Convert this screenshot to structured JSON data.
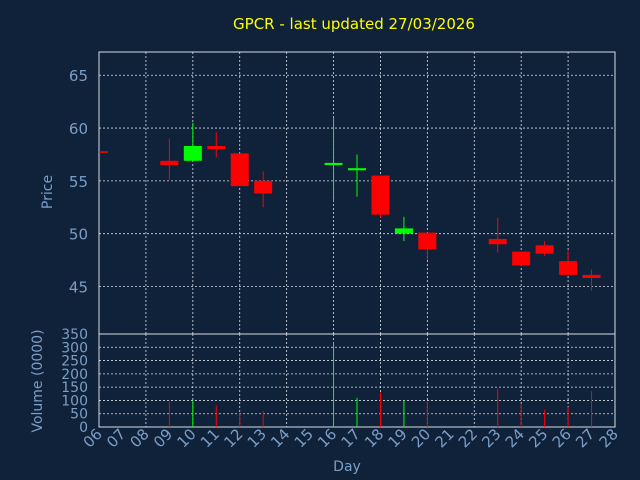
{
  "title": "GPCR - last updated 27/03/2026",
  "colors": {
    "background": "#10213a",
    "title": "#ffff00",
    "axis_text": "#7b9fc6",
    "grid": "#d8dde6",
    "up": "#00ff00",
    "down": "#ff0000"
  },
  "chart_data": [
    {
      "type": "candlestick",
      "ylabel": "Price",
      "ylim": [
        40.5,
        67.2
      ],
      "yticks": [
        45,
        50,
        55,
        60,
        65
      ],
      "grid": true,
      "days": [
        "06",
        "07",
        "08",
        "09",
        "10",
        "11",
        "12",
        "13",
        "14",
        "15",
        "16",
        "17",
        "18",
        "19",
        "20",
        "21",
        "22",
        "23",
        "24",
        "25",
        "26",
        "27",
        "28"
      ],
      "candles": [
        {
          "day": "06",
          "open": 57.8,
          "high": 57.8,
          "low": 57.8,
          "close": 57.8,
          "dir": "down"
        },
        {
          "day": "09",
          "open": 56.9,
          "high": 59.0,
          "low": 55.1,
          "close": 56.5,
          "dir": "down"
        },
        {
          "day": "10",
          "open": 56.9,
          "high": 60.5,
          "low": 56.9,
          "close": 58.3,
          "dir": "up"
        },
        {
          "day": "11",
          "open": 58.3,
          "high": 59.6,
          "low": 57.2,
          "close": 58.0,
          "dir": "down"
        },
        {
          "day": "12",
          "open": 57.6,
          "high": 57.6,
          "low": 54.5,
          "close": 54.5,
          "dir": "down"
        },
        {
          "day": "13",
          "open": 55.0,
          "high": 55.9,
          "low": 52.5,
          "close": 53.8,
          "dir": "down"
        },
        {
          "day": "16",
          "open": 56.5,
          "high": 61.0,
          "low": 53.0,
          "close": 56.7,
          "dir": "up"
        },
        {
          "day": "17",
          "open": 56.0,
          "high": 57.5,
          "low": 53.5,
          "close": 56.2,
          "dir": "up"
        },
        {
          "day": "18",
          "open": 55.5,
          "high": 55.5,
          "low": 51.5,
          "close": 51.8,
          "dir": "down"
        },
        {
          "day": "19",
          "open": 50.0,
          "high": 51.6,
          "low": 49.3,
          "close": 50.5,
          "dir": "up"
        },
        {
          "day": "20",
          "open": 50.1,
          "high": 50.1,
          "low": 47.5,
          "close": 48.5,
          "dir": "down"
        },
        {
          "day": "23",
          "open": 49.5,
          "high": 51.5,
          "low": 48.2,
          "close": 49.0,
          "dir": "down"
        },
        {
          "day": "24",
          "open": 48.3,
          "high": 48.3,
          "low": 46.9,
          "close": 47.0,
          "dir": "down"
        },
        {
          "day": "25",
          "open": 48.9,
          "high": 49.3,
          "low": 47.9,
          "close": 48.1,
          "dir": "down"
        },
        {
          "day": "26",
          "open": 47.4,
          "high": 48.4,
          "low": 46.1,
          "close": 46.1,
          "dir": "down"
        },
        {
          "day": "27",
          "open": 46.1,
          "high": 46.6,
          "low": 44.6,
          "close": 45.8,
          "dir": "down"
        }
      ]
    },
    {
      "type": "bar",
      "ylabel": "Volume (0000)",
      "xlabel": "Day",
      "ylim": [
        0,
        350
      ],
      "yticks": [
        0,
        50,
        100,
        150,
        200,
        250,
        300,
        350
      ],
      "grid": true,
      "volumes": [
        {
          "day": "09",
          "value": 95,
          "dir": "down"
        },
        {
          "day": "10",
          "value": 100,
          "dir": "up"
        },
        {
          "day": "11",
          "value": 80,
          "dir": "down"
        },
        {
          "day": "12",
          "value": 50,
          "dir": "down"
        },
        {
          "day": "13",
          "value": 60,
          "dir": "down"
        },
        {
          "day": "16",
          "value": 320,
          "dir": "up"
        },
        {
          "day": "17",
          "value": 110,
          "dir": "up"
        },
        {
          "day": "18",
          "value": 130,
          "dir": "down"
        },
        {
          "day": "19",
          "value": 100,
          "dir": "up"
        },
        {
          "day": "20",
          "value": 95,
          "dir": "down"
        },
        {
          "day": "23",
          "value": 145,
          "dir": "down"
        },
        {
          "day": "24",
          "value": 85,
          "dir": "down"
        },
        {
          "day": "25",
          "value": 65,
          "dir": "down"
        },
        {
          "day": "26",
          "value": 75,
          "dir": "down"
        },
        {
          "day": "27",
          "value": 135,
          "dir": "down"
        }
      ]
    }
  ]
}
